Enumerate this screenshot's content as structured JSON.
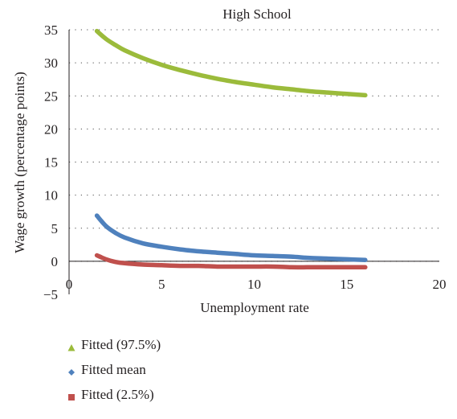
{
  "chart_data": {
    "type": "line",
    "title": "High School",
    "xlabel": "Unemployment rate",
    "ylabel": "Wage growth (percentage points)",
    "xlim": [
      0,
      20
    ],
    "ylim": [
      -5,
      35
    ],
    "xticks": [
      0,
      5,
      10,
      15,
      20
    ],
    "yticks": [
      -5,
      0,
      5,
      10,
      15,
      20,
      25,
      30,
      35
    ],
    "grid": "horizontal dotted",
    "legend_position": "bottom",
    "series": [
      {
        "name": "Fitted (97.5%)",
        "color": "#9bbb3b",
        "marker": "triangle",
        "x": [
          1.5,
          2,
          2.5,
          3,
          4,
          5,
          6,
          7,
          8,
          9,
          10,
          11,
          12,
          13,
          14,
          15,
          16
        ],
        "values": [
          34.8,
          33.6,
          32.7,
          31.9,
          30.7,
          29.7,
          28.9,
          28.2,
          27.6,
          27.1,
          26.7,
          26.3,
          26.0,
          25.7,
          25.5,
          25.3,
          25.1
        ]
      },
      {
        "name": "Fitted mean",
        "color": "#4f81bd",
        "marker": "diamond",
        "x": [
          1.5,
          2,
          2.5,
          3,
          4,
          5,
          6,
          7,
          8,
          9,
          10,
          11,
          12,
          13,
          14,
          15,
          16
        ],
        "values": [
          6.9,
          5.3,
          4.3,
          3.6,
          2.7,
          2.2,
          1.8,
          1.5,
          1.3,
          1.1,
          0.9,
          0.8,
          0.7,
          0.5,
          0.4,
          0.3,
          0.2
        ]
      },
      {
        "name": "Fitted (2.5%)",
        "color": "#c0504d",
        "marker": "square",
        "x": [
          1.5,
          2,
          2.5,
          3,
          4,
          5,
          6,
          7,
          8,
          9,
          10,
          11,
          12,
          13,
          14,
          15,
          16
        ],
        "values": [
          0.9,
          0.3,
          -0.1,
          -0.3,
          -0.5,
          -0.6,
          -0.7,
          -0.7,
          -0.8,
          -0.8,
          -0.8,
          -0.8,
          -0.9,
          -0.9,
          -0.9,
          -0.9,
          -0.9
        ]
      }
    ]
  }
}
